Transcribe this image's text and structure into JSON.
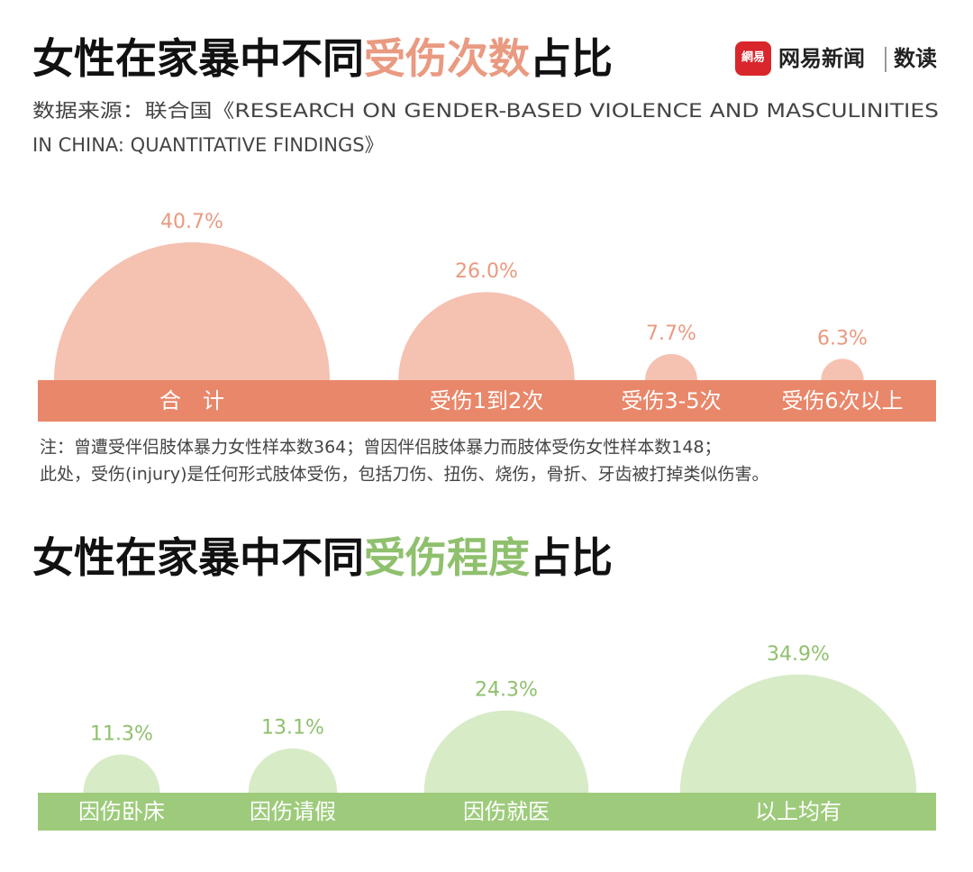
{
  "logo": {
    "icon": "網易",
    "name": "网易新闻",
    "section": "数读"
  },
  "source": [
    "数据来源：联合国《RESEARCH ON GENDER-BASED VIOLENCE AND MASCULINITIES",
    "IN CHINA: QUANTITATIVE FINDINGS》"
  ],
  "notes": [
    "注：曾遭受伴侣肢体暴力女性样本数364；曾因伴侣肢体暴力而肢体受伤女性样本数148；",
    "此处，受伤(injury)是任何形式肢体受伤，包括刀伤、扭伤、烧伤，骨折、牙齿被打掉类似伤害。"
  ],
  "chart_data": [
    {
      "type": "semicircle",
      "title_prefix": "女性在家暴中不同",
      "title_highlight": "受伤次数",
      "title_suffix": "占比",
      "categories": [
        "合　计",
        "受伤1到2次",
        "受伤3-5次",
        "受伤6次以上"
      ],
      "values": [
        40.7,
        26.0,
        7.7,
        6.3
      ],
      "value_labels": [
        "40.7%",
        "26.0%",
        "7.7%",
        "6.3%"
      ],
      "color": "#f5c1b1",
      "bar_color": "#e9876a",
      "label_color": "#e99a80"
    },
    {
      "type": "semicircle",
      "title_prefix": "女性在家暴中不同",
      "title_highlight": "受伤程度",
      "title_suffix": "占比",
      "categories": [
        "因伤卧床",
        "因伤请假",
        "因伤就医",
        "以上均有"
      ],
      "values": [
        11.3,
        13.1,
        24.3,
        34.9
      ],
      "value_labels": [
        "11.3%",
        "13.1%",
        "24.3%",
        "34.9%"
      ],
      "color": "#d7ebc7",
      "bar_color": "#9dcb7b",
      "label_color": "#8fc06d"
    }
  ]
}
